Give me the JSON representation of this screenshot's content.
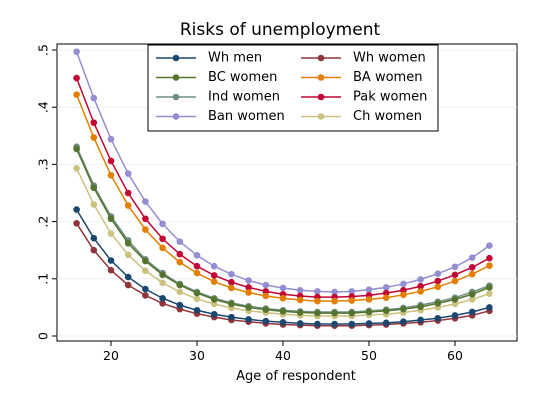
{
  "chart_data": {
    "type": "line",
    "title": "Risks of unemployment",
    "xlabel": "Age of respondent",
    "ylabel": "",
    "xlim": [
      15,
      65
    ],
    "ylim": [
      0,
      0.5
    ],
    "xticks": [
      20,
      30,
      40,
      50,
      60
    ],
    "yticks": [
      0,
      0.1,
      0.2,
      0.3,
      0.4,
      0.5
    ],
    "ytick_labels": [
      "0",
      ".1",
      ".2",
      ".3",
      ".4",
      ".5"
    ],
    "grid": "horizontal",
    "legend_position": "top-center",
    "x": [
      16,
      18,
      20,
      22,
      24,
      26,
      28,
      30,
      32,
      34,
      36,
      38,
      40,
      42,
      44,
      46,
      48,
      50,
      52,
      54,
      56,
      58,
      60,
      62,
      64
    ],
    "series": [
      {
        "name": "Wh men",
        "color": "#1a476f",
        "values": [
          0.221,
          0.171,
          0.132,
          0.103,
          0.082,
          0.066,
          0.054,
          0.045,
          0.038,
          0.033,
          0.029,
          0.026,
          0.024,
          0.022,
          0.021,
          0.021,
          0.021,
          0.022,
          0.023,
          0.025,
          0.028,
          0.031,
          0.036,
          0.042,
          0.05
        ]
      },
      {
        "name": "Wh women",
        "color": "#90353b",
        "values": [
          0.197,
          0.15,
          0.115,
          0.089,
          0.071,
          0.057,
          0.047,
          0.039,
          0.033,
          0.028,
          0.025,
          0.022,
          0.02,
          0.019,
          0.018,
          0.018,
          0.018,
          0.019,
          0.02,
          0.022,
          0.024,
          0.027,
          0.031,
          0.036,
          0.044
        ]
      },
      {
        "name": "BC women",
        "color": "#55752f",
        "values": [
          0.327,
          0.259,
          0.205,
          0.162,
          0.131,
          0.107,
          0.089,
          0.075,
          0.064,
          0.056,
          0.05,
          0.046,
          0.043,
          0.041,
          0.04,
          0.04,
          0.04,
          0.042,
          0.044,
          0.047,
          0.051,
          0.057,
          0.064,
          0.073,
          0.085
        ]
      },
      {
        "name": "BA women",
        "color": "#e37e00",
        "values": [
          0.422,
          0.347,
          0.281,
          0.228,
          0.186,
          0.154,
          0.129,
          0.11,
          0.095,
          0.084,
          0.076,
          0.07,
          0.066,
          0.063,
          0.061,
          0.061,
          0.062,
          0.064,
          0.067,
          0.072,
          0.078,
          0.086,
          0.096,
          0.108,
          0.123
        ]
      },
      {
        "name": "Ind women",
        "color": "#6e8e84",
        "values": [
          0.331,
          0.263,
          0.209,
          0.167,
          0.134,
          0.11,
          0.091,
          0.077,
          0.066,
          0.058,
          0.052,
          0.048,
          0.045,
          0.043,
          0.042,
          0.042,
          0.042,
          0.044,
          0.046,
          0.049,
          0.054,
          0.06,
          0.067,
          0.077,
          0.088
        ]
      },
      {
        "name": "Pak women",
        "color": "#c10534",
        "values": [
          0.451,
          0.373,
          0.306,
          0.25,
          0.205,
          0.17,
          0.143,
          0.122,
          0.106,
          0.094,
          0.085,
          0.078,
          0.073,
          0.07,
          0.068,
          0.068,
          0.069,
          0.071,
          0.075,
          0.08,
          0.087,
          0.096,
          0.107,
          0.12,
          0.136
        ]
      },
      {
        "name": "Ban women",
        "color": "#938dd2",
        "values": [
          0.497,
          0.416,
          0.344,
          0.284,
          0.235,
          0.196,
          0.165,
          0.141,
          0.122,
          0.108,
          0.097,
          0.089,
          0.084,
          0.08,
          0.078,
          0.077,
          0.078,
          0.081,
          0.085,
          0.091,
          0.099,
          0.109,
          0.121,
          0.137,
          0.158
        ]
      },
      {
        "name": "Ch women",
        "color": "#cac27e",
        "values": [
          0.293,
          0.23,
          0.179,
          0.142,
          0.114,
          0.093,
          0.077,
          0.065,
          0.056,
          0.049,
          0.044,
          0.041,
          0.038,
          0.036,
          0.035,
          0.035,
          0.035,
          0.037,
          0.038,
          0.041,
          0.045,
          0.05,
          0.056,
          0.064,
          0.074
        ]
      }
    ]
  }
}
